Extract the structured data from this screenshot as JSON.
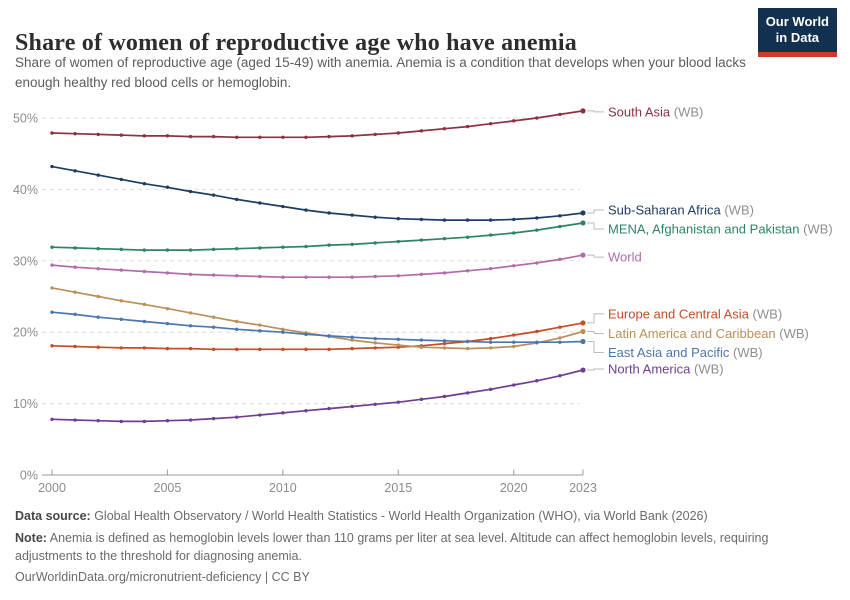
{
  "header": {
    "title": "Share of women of reproductive age who have anemia",
    "subtitle": "Share of women of reproductive age (aged 15-49) with anemia. Anemia is a condition that develops when your blood lacks enough healthy red blood cells or hemoglobin."
  },
  "logo": {
    "line1": "Our World",
    "line2": "in Data",
    "bg_color": "#12304f",
    "stripe_color": "#d0382e"
  },
  "footer": {
    "data_source_label": "Data source:",
    "data_source_text": " Global Health Observatory / World Health Statistics - World Health Organization (WHO), via World Bank (2026)",
    "note_label": "Note:",
    "note_text": " Anemia is defined as hemoglobin levels lower than 110 grams per liter at sea level. Altitude can affect hemoglobin levels, requiring adjustments to the threshold for diagnosing anemia.",
    "link": "OurWorldinData.org/micronutrient-deficiency | CC BY"
  },
  "chart_data": {
    "type": "line",
    "title": "Share of women of reproductive age who have anemia",
    "xlabel": "",
    "ylabel": "",
    "ylim": [
      0,
      50
    ],
    "y_ticks": [
      0,
      10,
      20,
      30,
      40,
      50
    ],
    "y_tick_suffix": "%",
    "x_ticks": [
      2000,
      2005,
      2010,
      2015,
      2020,
      2023
    ],
    "grid": "dashed horizontal",
    "legend_position": "right-of-line-ends",
    "x": [
      2000,
      2001,
      2002,
      2003,
      2004,
      2005,
      2006,
      2007,
      2008,
      2009,
      2010,
      2011,
      2012,
      2013,
      2014,
      2015,
      2016,
      2017,
      2018,
      2019,
      2020,
      2021,
      2022,
      2023
    ],
    "series": [
      {
        "name": "South Asia",
        "suffix": " (WB)",
        "color": "#8b3240",
        "label_dy": 1,
        "values": [
          47.9,
          47.8,
          47.7,
          47.6,
          47.5,
          47.5,
          47.4,
          47.4,
          47.3,
          47.3,
          47.3,
          47.3,
          47.4,
          47.5,
          47.7,
          47.9,
          48.2,
          48.5,
          48.8,
          49.2,
          49.6,
          50.0,
          50.5,
          51.0
        ]
      },
      {
        "name": "Sub-Saharan Africa",
        "suffix": " (WB)",
        "color": "#1d3d63",
        "label_dy": -3,
        "values": [
          43.2,
          42.6,
          42.0,
          41.4,
          40.8,
          40.3,
          39.7,
          39.2,
          38.6,
          38.1,
          37.6,
          37.1,
          36.7,
          36.4,
          36.1,
          35.9,
          35.8,
          35.7,
          35.7,
          35.7,
          35.8,
          36.0,
          36.3,
          36.7
        ]
      },
      {
        "name": "MENA, Afghanistan and Pakistan",
        "suffix": " (WB)",
        "color": "#2c8465",
        "label_dy": 6,
        "values": [
          31.9,
          31.8,
          31.7,
          31.6,
          31.5,
          31.5,
          31.5,
          31.6,
          31.7,
          31.8,
          31.9,
          32.0,
          32.2,
          32.3,
          32.5,
          32.7,
          32.9,
          33.1,
          33.3,
          33.6,
          33.9,
          34.3,
          34.8,
          35.3
        ]
      },
      {
        "name": "World",
        "suffix": "",
        "color": "#b16ba8",
        "label_dy": 2,
        "values": [
          29.4,
          29.1,
          28.9,
          28.7,
          28.5,
          28.3,
          28.1,
          28.0,
          27.9,
          27.8,
          27.7,
          27.7,
          27.7,
          27.7,
          27.8,
          27.9,
          28.1,
          28.3,
          28.6,
          28.9,
          29.3,
          29.7,
          30.2,
          30.8
        ]
      },
      {
        "name": "Europe and Central Asia",
        "suffix": " (WB)",
        "color": "#c24d26",
        "label_dy": -9,
        "values": [
          18.1,
          18.0,
          17.9,
          17.8,
          17.8,
          17.7,
          17.7,
          17.6,
          17.6,
          17.6,
          17.6,
          17.6,
          17.6,
          17.7,
          17.8,
          17.9,
          18.1,
          18.4,
          18.7,
          19.1,
          19.6,
          20.1,
          20.7,
          21.3
        ]
      },
      {
        "name": "Latin America and Caribbean",
        "suffix": " (WB)",
        "color": "#bc8e5a",
        "label_dy": 2,
        "values": [
          26.2,
          25.6,
          25.0,
          24.4,
          23.9,
          23.3,
          22.7,
          22.1,
          21.5,
          21.0,
          20.4,
          19.9,
          19.4,
          18.9,
          18.5,
          18.2,
          17.9,
          17.8,
          17.7,
          17.8,
          18.0,
          18.5,
          19.2,
          20.1
        ]
      },
      {
        "name": "East Asia and Pacific",
        "suffix": " (WB)",
        "color": "#4c76ae",
        "label_dy": 11,
        "values": [
          22.8,
          22.5,
          22.1,
          21.8,
          21.5,
          21.2,
          20.9,
          20.7,
          20.4,
          20.2,
          20.0,
          19.7,
          19.5,
          19.3,
          19.1,
          19.0,
          18.9,
          18.8,
          18.7,
          18.6,
          18.6,
          18.6,
          18.6,
          18.7
        ]
      },
      {
        "name": "North America",
        "suffix": " (WB)",
        "color": "#6d3e91",
        "label_dy": -1,
        "values": [
          7.8,
          7.7,
          7.6,
          7.5,
          7.5,
          7.6,
          7.7,
          7.9,
          8.1,
          8.4,
          8.7,
          9.0,
          9.3,
          9.6,
          9.9,
          10.2,
          10.6,
          11.0,
          11.5,
          12.0,
          12.6,
          13.2,
          13.9,
          14.7
        ]
      }
    ],
    "style": {
      "gridline_color": "#dcdcdc",
      "axis_color": "#9a9a9a",
      "tick_label_color": "#8c8c8c",
      "suffix_color": "#8f8f8f",
      "connector_color": "#bbbbbb"
    }
  }
}
